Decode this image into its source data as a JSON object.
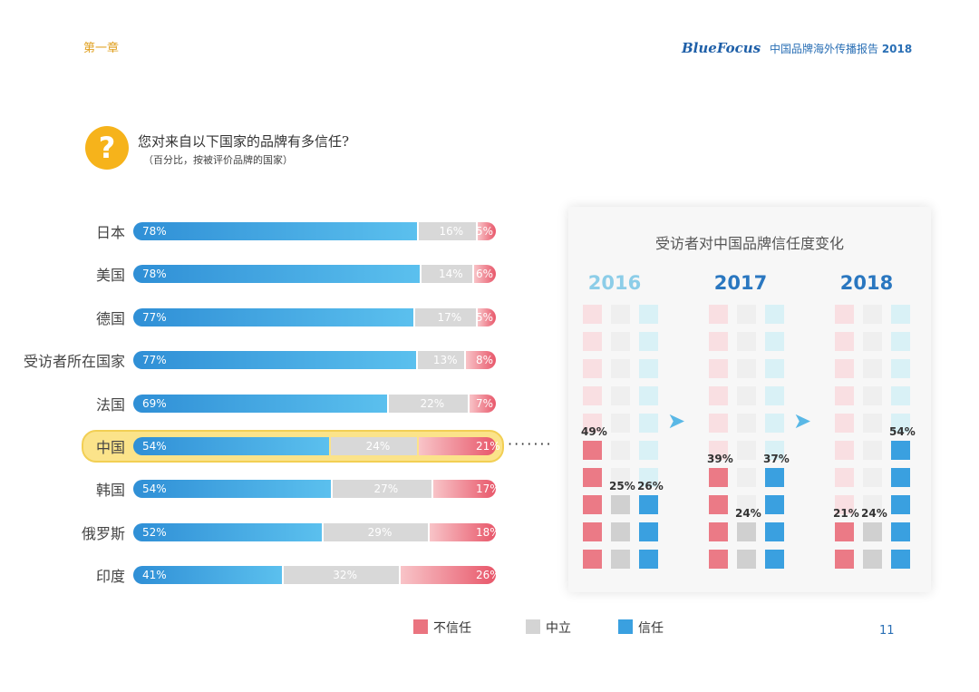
{
  "header": {
    "chapter": "第一章",
    "brand_logo": "BlueFocus",
    "brand_title": "中国品牌海外传播报告",
    "brand_year": "2018"
  },
  "question": {
    "icon_text": "?",
    "icon": "question-mark-icon",
    "text": "您对来自以下国家的品牌有多信任?",
    "subtext": "（百分比，按被评价品牌的国家）"
  },
  "colors": {
    "trust": "#3aa0e0",
    "neutral": "#d8d8d8",
    "distrust": "#e8576a",
    "highlight": "#fbe38a"
  },
  "chart_data": [
    {
      "type": "bar",
      "stacked": true,
      "orientation": "horizontal",
      "categories": [
        "日本",
        "美国",
        "德国",
        "受访者所在国家",
        "法国",
        "中国",
        "韩国",
        "俄罗斯",
        "印度"
      ],
      "series": [
        {
          "name": "信任",
          "values": [
            78,
            78,
            77,
            77,
            69,
            54,
            54,
            52,
            41
          ]
        },
        {
          "name": "中立",
          "values": [
            16,
            14,
            17,
            13,
            22,
            24,
            27,
            29,
            32
          ]
        },
        {
          "name": "不信任",
          "values": [
            5,
            6,
            5,
            8,
            7,
            21,
            17,
            18,
            26
          ]
        }
      ],
      "value_suffix": "%",
      "highlighted_category": "中国"
    },
    {
      "type": "bar",
      "title": "受访者对中国品牌信任度变化",
      "categories": [
        "2016",
        "2017",
        "2018"
      ],
      "series": [
        {
          "name": "不信任",
          "values": [
            49,
            39,
            21
          ]
        },
        {
          "name": "中立",
          "values": [
            25,
            24,
            24
          ]
        },
        {
          "name": "信任",
          "values": [
            26,
            37,
            54
          ]
        }
      ],
      "value_suffix": "%",
      "grid_cells": 10
    }
  ],
  "legend": [
    {
      "key": "distrust",
      "label": "不信任"
    },
    {
      "key": "neutral",
      "label": "中立"
    },
    {
      "key": "trust",
      "label": "信任"
    }
  ],
  "page_number": "11"
}
